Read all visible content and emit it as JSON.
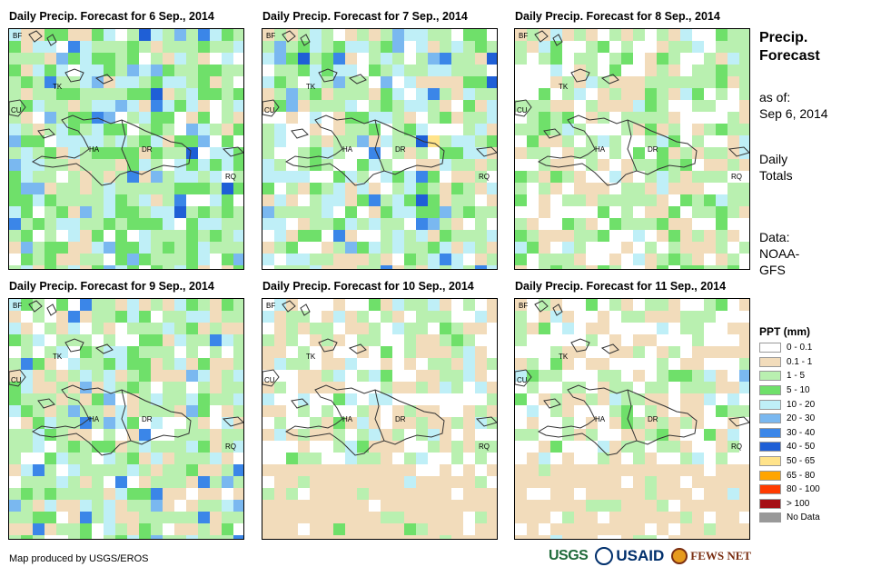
{
  "panels": [
    {
      "title": "Daily Precip. Forecast for 6 Sep., 2014"
    },
    {
      "title": "Daily Precip. Forecast for 7 Sep., 2014"
    },
    {
      "title": "Daily Precip. Forecast for 8 Sep., 2014"
    },
    {
      "title": "Daily Precip. Forecast for 9 Sep., 2014"
    },
    {
      "title": "Daily Precip. Forecast for 10 Sep., 2014"
    },
    {
      "title": "Daily Precip. Forecast for 11 Sep., 2014"
    }
  ],
  "map_labels": {
    "bf": "BF",
    "tk": "TK",
    "cu": "CU",
    "ha": "HA",
    "dr": "DR",
    "rq": "RQ"
  },
  "sidebar": {
    "title_line1": "Precip.",
    "title_line2": "Forecast",
    "asof_label": "as of:",
    "asof_date": "Sep 6, 2014",
    "totals_line1": "Daily",
    "totals_line2": "Totals",
    "data_label": "Data:",
    "data_line1": "NOAA-",
    "data_line2": "GFS"
  },
  "legend": {
    "title": "PPT (mm)",
    "classes": [
      {
        "label": "0 - 0.1",
        "color": "#ffffff"
      },
      {
        "label": "0.1 - 1",
        "color": "#f2dcbb"
      },
      {
        "label": "1 - 5",
        "color": "#b9f0b0"
      },
      {
        "label": "5 - 10",
        "color": "#6fe06a"
      },
      {
        "label": "10 - 20",
        "color": "#bfeff7"
      },
      {
        "label": "20 - 30",
        "color": "#7ab8f0"
      },
      {
        "label": "30 - 40",
        "color": "#3b86e8"
      },
      {
        "label": "40 - 50",
        "color": "#1f5fd6"
      },
      {
        "label": "50 - 65",
        "color": "#ffe38a"
      },
      {
        "label": "65 - 80",
        "color": "#ffa500"
      },
      {
        "label": "80 - 100",
        "color": "#ff3b00"
      },
      {
        "label": "> 100",
        "color": "#a50f15"
      },
      {
        "label": "No Data",
        "color": "#999999"
      }
    ]
  },
  "credit": "Map produced by USGS/EROS",
  "logos": {
    "usgs": "USGS",
    "usaid": "USAID",
    "fews": "FEWS NET"
  }
}
